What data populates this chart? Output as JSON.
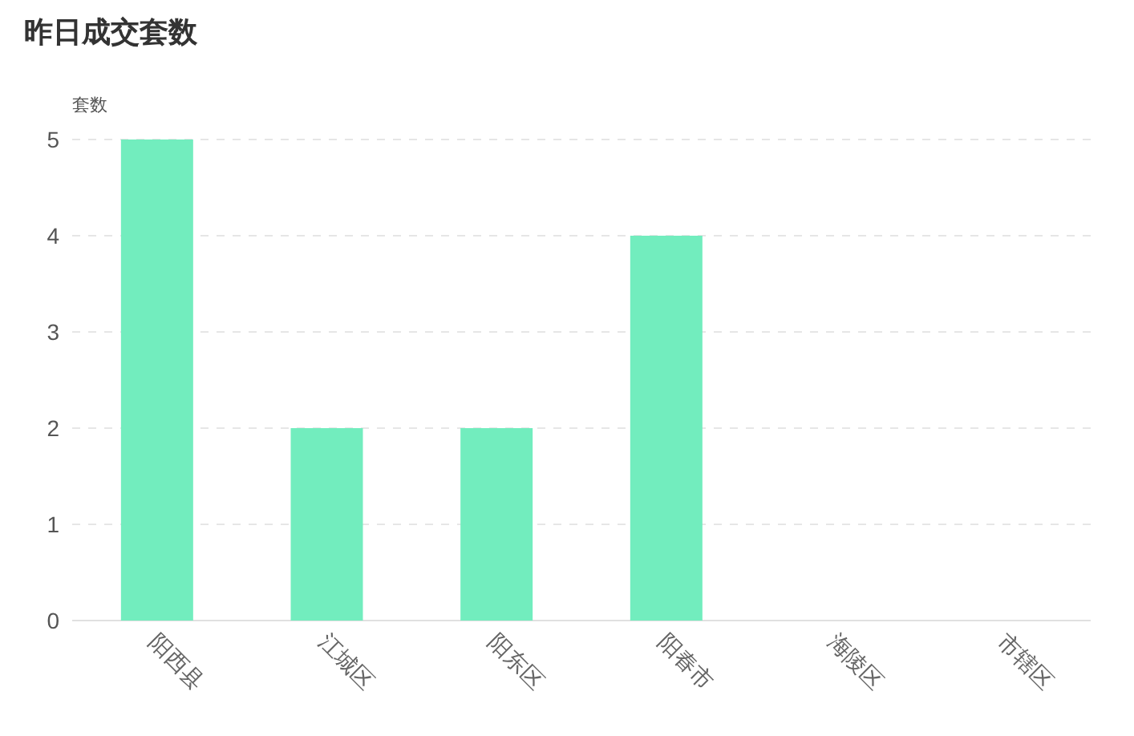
{
  "chart_data": {
    "type": "bar",
    "title": "昨日成交套数",
    "ylabel": "套数",
    "categories": [
      "阳西县",
      "江城区",
      "阳东区",
      "阳春市",
      "海陵区",
      "市辖区"
    ],
    "values": [
      5,
      2,
      2,
      4,
      0,
      0
    ],
    "color": "#72edbe",
    "ylim": [
      0,
      5
    ],
    "yticks": [
      0,
      1,
      2,
      3,
      4,
      5
    ],
    "grid": "y"
  }
}
